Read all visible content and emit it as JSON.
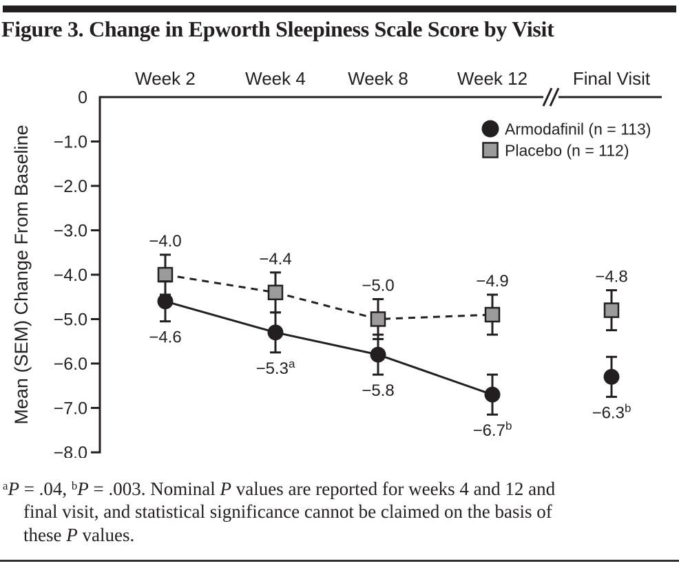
{
  "chart_data": {
    "type": "line",
    "title": "Figure 3. Change in Epworth Sleepiness Scale Score by Visit",
    "categories": [
      "Week 2",
      "Week 4",
      "Week 8",
      "Week 12",
      "Final Visit"
    ],
    "ylabel": "Mean (SEM) Change From Baseline",
    "ylim": [
      0,
      -8.0
    ],
    "ytick_labels": [
      "0",
      "−1.0",
      "−2.0",
      "−3.0",
      "−4.0",
      "−5.0",
      "−6.0",
      "−7.0",
      "−8.0"
    ],
    "grid": false,
    "legend_position": "top-right",
    "axis_break_before_last": true,
    "ink_color": "#231f20",
    "series": [
      {
        "name": "Armodafinil (n = 113)",
        "marker": "circle",
        "marker_fill": "#231f20",
        "line_style": "solid",
        "values": [
          -4.6,
          -5.3,
          -5.8,
          -6.7,
          -6.3
        ],
        "sem": 0.45,
        "label_side": "below",
        "point_labels": [
          {
            "t": "−4.6",
            "sup": ""
          },
          {
            "t": "−5.3",
            "sup": "a"
          },
          {
            "t": "−5.8",
            "sup": ""
          },
          {
            "t": "−6.7",
            "sup": "b"
          },
          {
            "t": "−6.3",
            "sup": "b"
          }
        ]
      },
      {
        "name": "Placebo (n = 112)",
        "marker": "square",
        "marker_fill": "#9b9b9b",
        "line_style": "dashed",
        "values": [
          -4.0,
          -4.4,
          -5.0,
          -4.9,
          -4.8
        ],
        "sem": 0.45,
        "label_side": "above",
        "point_labels": [
          {
            "t": "−4.0",
            "sup": ""
          },
          {
            "t": "−4.4",
            "sup": ""
          },
          {
            "t": "−5.0",
            "sup": ""
          },
          {
            "t": "−4.9",
            "sup": ""
          },
          {
            "t": "−4.8",
            "sup": ""
          }
        ]
      }
    ]
  },
  "footnote": {
    "segments": [
      {
        "t": "a",
        "style": "sup"
      },
      {
        "t": "P",
        "style": "italic"
      },
      {
        "t": " = .04, ",
        "style": "normal"
      },
      {
        "t": "b",
        "style": "sup"
      },
      {
        "t": "P",
        "style": "italic"
      },
      {
        "t": " = .003. Nominal ",
        "style": "normal"
      },
      {
        "t": "P",
        "style": "italic"
      },
      {
        "t": " values are reported for weeks 4 and 12 and",
        "style": "normal"
      },
      {
        "style": "br"
      },
      {
        "t": "final visit, and statistical significance cannot be claimed on the basis of",
        "style": "normal"
      },
      {
        "style": "br"
      },
      {
        "t": "these ",
        "style": "normal"
      },
      {
        "t": "P",
        "style": "italic"
      },
      {
        "t": " values.",
        "style": "normal"
      }
    ]
  }
}
